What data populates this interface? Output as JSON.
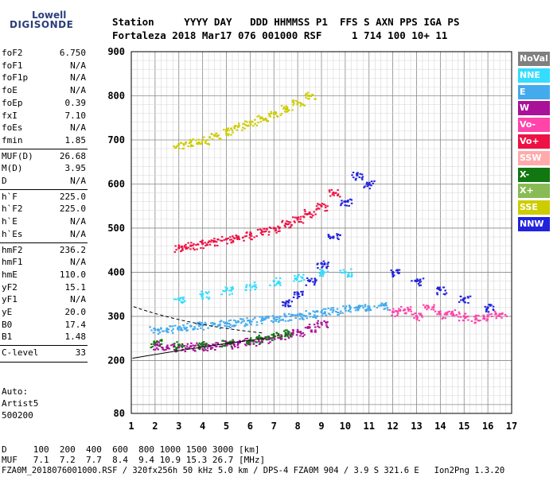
{
  "logo": {
    "line1": "Lowell",
    "line2": "DIGISONDE"
  },
  "header": {
    "labels": "Station     YYYY DAY   DDD HHMMSS P1  FFS S AXN PPS IGA PS",
    "values": "Fortaleza 2018 Mar17 076 001000 RSF     1 714 100 10+ 11"
  },
  "params_group1": [
    {
      "k": "foF2",
      "v": "6.750"
    },
    {
      "k": "foF1",
      "v": "N/A"
    },
    {
      "k": "foF1p",
      "v": "N/A"
    },
    {
      "k": "foE",
      "v": "N/A"
    },
    {
      "k": "foEp",
      "v": "0.39"
    },
    {
      "k": "fxI",
      "v": "7.10"
    },
    {
      "k": "foEs",
      "v": "N/A"
    },
    {
      "k": "fmin",
      "v": "1.85"
    }
  ],
  "params_group2": [
    {
      "k": "MUF(D)",
      "v": "26.68"
    },
    {
      "k": "M(D)",
      "v": "3.95"
    },
    {
      "k": "D",
      "v": "N/A"
    }
  ],
  "params_group3": [
    {
      "k": "h`F",
      "v": "225.0"
    },
    {
      "k": "h`F2",
      "v": "225.0"
    },
    {
      "k": "h`E",
      "v": "N/A"
    },
    {
      "k": "h`Es",
      "v": "N/A"
    }
  ],
  "params_group4": [
    {
      "k": "hmF2",
      "v": "236.2"
    },
    {
      "k": "hmF1",
      "v": "N/A"
    },
    {
      "k": "hmE",
      "v": "110.0"
    },
    {
      "k": "yF2",
      "v": "15.1"
    },
    {
      "k": "yF1",
      "v": "N/A"
    },
    {
      "k": "yE",
      "v": "20.0"
    },
    {
      "k": "B0",
      "v": "17.4"
    },
    {
      "k": "B1",
      "v": "1.48"
    }
  ],
  "params_group5": [
    {
      "k": "C-level",
      "v": "33"
    }
  ],
  "autoscale": {
    "line1": "Auto:",
    "line2": "Artist5",
    "line3": "500200"
  },
  "legend": [
    {
      "label": "NoVal",
      "color": "#808080"
    },
    {
      "label": "NNE",
      "color": "#33ddff"
    },
    {
      "label": "E",
      "color": "#44aaee"
    },
    {
      "label": "W",
      "color": "#aa1199"
    },
    {
      "label": "Vo-",
      "color": "#ff44aa"
    },
    {
      "label": "Vo+",
      "color": "#ee1144"
    },
    {
      "label": "SSW",
      "color": "#ffaaaa"
    },
    {
      "label": "X-",
      "color": "#117711"
    },
    {
      "label": "X+",
      "color": "#88bb55"
    },
    {
      "label": "SSE",
      "color": "#cccc00"
    },
    {
      "label": "NNW",
      "color": "#2222dd"
    }
  ],
  "bottom": {
    "line1": "D     100  200  400  600  800 1000 1500 3000 [km]",
    "line2": "MUF   7.1  7.2  7.7  8.4  9.4 10.9 15.3 26.7 [MHz]",
    "line3": "FZA0M_2018076001000.RSF / 320fx256h 50 kHz 5.0 km / DPS-4 FZA0M 904 / 3.9 S 321.6 E   Ion2Png 1.3.20"
  },
  "chart_data": {
    "type": "scatter",
    "title": "",
    "xlabel": "",
    "ylabel": "",
    "xlim": [
      1,
      17
    ],
    "ylim": [
      80,
      900
    ],
    "x_ticks": [
      1,
      2,
      3,
      4,
      5,
      6,
      7,
      8,
      9,
      10,
      11,
      12,
      13,
      14,
      15,
      16,
      17
    ],
    "y_ticks": [
      80,
      200,
      300,
      400,
      500,
      600,
      700,
      800,
      900
    ],
    "grid": true,
    "series": [
      {
        "name": "E",
        "color": "#44aaee",
        "x": [
          2.0,
          2.5,
          3.0,
          3.5,
          4.0,
          4.5,
          5.0,
          5.5,
          6.0,
          6.5,
          7.0,
          7.5,
          8.0,
          8.5,
          9.0,
          9.5,
          10.0,
          10.5,
          11.0,
          11.5
        ],
        "y": [
          270,
          272,
          275,
          278,
          280,
          283,
          285,
          288,
          290,
          293,
          296,
          300,
          303,
          306,
          310,
          314,
          318,
          320,
          322,
          325
        ]
      },
      {
        "name": "W",
        "color": "#aa1199",
        "x": [
          2.0,
          2.5,
          3.0,
          3.5,
          4.0,
          4.5,
          5.0,
          5.5,
          6.0,
          6.5,
          7.0,
          7.5,
          8.0,
          8.5,
          9.0
        ],
        "y": [
          235,
          230,
          230,
          232,
          233,
          235,
          237,
          240,
          243,
          247,
          252,
          258,
          265,
          275,
          285
        ]
      },
      {
        "name": "Vo+",
        "color": "#ee1144",
        "x": [
          3.0,
          3.5,
          4.0,
          4.5,
          5.0,
          5.5,
          6.0,
          6.5,
          7.0,
          7.5,
          8.0,
          8.5,
          9.0,
          9.5
        ],
        "y": [
          455,
          460,
          465,
          470,
          475,
          480,
          485,
          492,
          500,
          510,
          520,
          535,
          550,
          580
        ]
      },
      {
        "name": "X-",
        "color": "#117711",
        "x": [
          2.0,
          3.0,
          4.0,
          5.0,
          6.0,
          6.5,
          7.0,
          7.5
        ],
        "y": [
          240,
          235,
          236,
          240,
          246,
          250,
          256,
          262
        ]
      },
      {
        "name": "NNW",
        "color": "#2222dd",
        "x": [
          7.5,
          8.0,
          8.5,
          9.0,
          9.5,
          10.0,
          10.5,
          11.0,
          12.0,
          13.0,
          14.0,
          15.0,
          16.0
        ],
        "y": [
          330,
          350,
          380,
          420,
          480,
          560,
          620,
          600,
          400,
          380,
          360,
          340,
          320
        ]
      },
      {
        "name": "SSE",
        "color": "#cccc00",
        "x": [
          3.0,
          3.5,
          4.0,
          4.5,
          5.0,
          5.5,
          6.0,
          6.5,
          7.0,
          7.5,
          8.0,
          8.5
        ],
        "y": [
          690,
          695,
          700,
          710,
          720,
          730,
          740,
          750,
          760,
          770,
          785,
          800
        ]
      },
      {
        "name": "Vo-",
        "color": "#ff44aa",
        "x": [
          12.0,
          12.5,
          13.0,
          13.5,
          14.0,
          14.5,
          15.0,
          15.5,
          16.0,
          16.5
        ],
        "y": [
          310,
          315,
          300,
          320,
          305,
          310,
          300,
          295,
          300,
          305
        ]
      },
      {
        "name": "NNE",
        "color": "#33ddff",
        "x": [
          3.0,
          4.0,
          5.0,
          6.0,
          7.0,
          8.0,
          9.0,
          10.0
        ],
        "y": [
          340,
          350,
          360,
          370,
          380,
          390,
          400,
          400
        ]
      }
    ]
  }
}
